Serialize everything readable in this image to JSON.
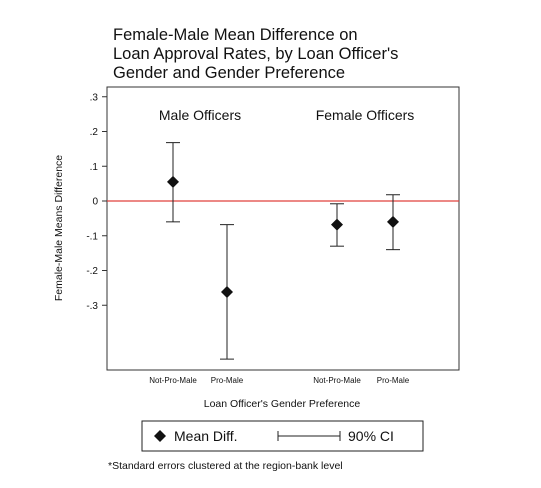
{
  "chart_data": {
    "type": "scatter",
    "title_lines": [
      "Female-Male Mean Difference on",
      "Loan Approval Rates, by Loan Officer's",
      "Gender and Gender Preference"
    ],
    "ylabel": "Female-Male Means Difference",
    "xlabel": "Loan Officer's Gender Preference",
    "ylim": [
      -0.46,
      0.32
    ],
    "yticks": [
      0.3,
      0.2,
      0.1,
      0,
      -0.1,
      -0.2,
      -0.3
    ],
    "ytick_labels": [
      ".3",
      ".2",
      ".1",
      "0",
      "-.1",
      "-.2",
      "-.3"
    ],
    "reference_line": {
      "y": 0,
      "color": "#e0403c"
    },
    "groups": [
      {
        "label": "Male Officers",
        "categories": [
          "Not-Pro-Male",
          "Pro-Male"
        ]
      },
      {
        "label": "Female Officers",
        "categories": [
          "Not-Pro-Male",
          "Pro-Male"
        ]
      }
    ],
    "points": [
      {
        "group": "Male Officers",
        "category": "Not-Pro-Male",
        "mean": 0.055,
        "ci_low": -0.06,
        "ci_high": 0.168
      },
      {
        "group": "Male Officers",
        "category": "Pro-Male",
        "mean": -0.262,
        "ci_low": -0.455,
        "ci_high": -0.068
      },
      {
        "group": "Female Officers",
        "category": "Not-Pro-Male",
        "mean": -0.068,
        "ci_low": -0.13,
        "ci_high": -0.008
      },
      {
        "group": "Female Officers",
        "category": "Pro-Male",
        "mean": -0.06,
        "ci_low": -0.14,
        "ci_high": 0.018
      }
    ],
    "legend": {
      "mean_label": "Mean Diff.",
      "ci_label": "90% CI",
      "placement": "bottom"
    },
    "note": "*Standard errors clustered at the region-bank level",
    "grid": false
  }
}
